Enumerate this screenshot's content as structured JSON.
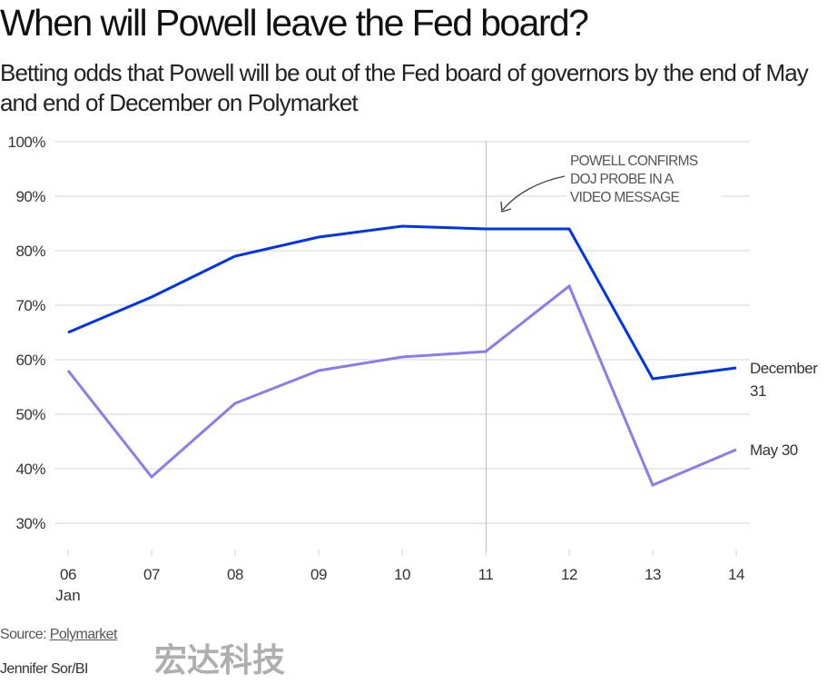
{
  "header": {
    "title": "When will Powell leave the Fed board?",
    "subtitle": "Betting odds that Powell will be out of the Fed board of governors by the end of May and end of December on Polymarket"
  },
  "chart_data": {
    "type": "line",
    "title": "When will Powell leave the Fed board?",
    "xlabel": "",
    "ylabel": "",
    "x": [
      "06",
      "07",
      "08",
      "09",
      "10",
      "11",
      "12",
      "13",
      "14"
    ],
    "x_sublabel": "Jan",
    "ylim": [
      25,
      100
    ],
    "yticks": [
      30,
      40,
      50,
      60,
      70,
      80,
      90,
      100
    ],
    "ytick_labels": [
      "30%",
      "40%",
      "50%",
      "60%",
      "70%",
      "80%",
      "90%",
      "100%"
    ],
    "grid": true,
    "series": [
      {
        "name": "December 31",
        "label_lines": [
          "December",
          "31"
        ],
        "color": "#0033ee",
        "values": [
          65.0,
          71.5,
          79.0,
          82.5,
          84.5,
          84.0,
          84.0,
          56.5,
          58.5
        ]
      },
      {
        "name": "May 30",
        "label_lines": [
          "May 30"
        ],
        "color": "#8b7bf0",
        "values": [
          58.0,
          38.5,
          52.0,
          58.0,
          60.5,
          61.5,
          73.5,
          37.0,
          43.5
        ]
      }
    ],
    "annotation": {
      "x": "11",
      "lines": [
        "POWELL CONFIRMS",
        "DOJ PROBE IN A",
        "VIDEO MESSAGE"
      ]
    }
  },
  "footer": {
    "source_prefix": "Source: ",
    "source_link": "Polymarket",
    "credit": "Jennifer Sor/BI",
    "watermark": "宏达科技"
  }
}
